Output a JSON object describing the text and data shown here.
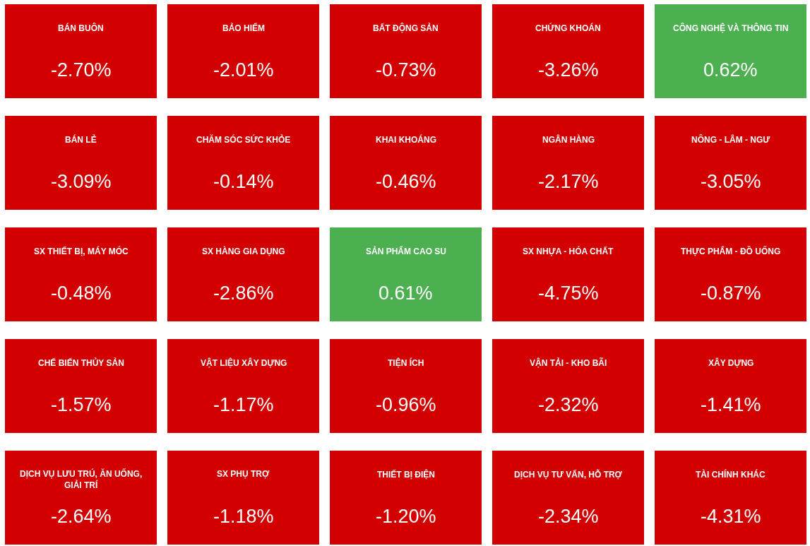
{
  "chart_data": {
    "type": "other",
    "categories": [
      "BÁN BUÔN",
      "BẢO HIỂM",
      "BẤT ĐỘNG SẢN",
      "CHỨNG KHOÁN",
      "CÔNG NGHỆ VÀ THÔNG TIN",
      "BÁN LẺ",
      "CHĂM SÓC SỨC KHỎE",
      "KHAI KHOÁNG",
      "NGÂN HÀNG",
      "NÔNG - LÂM - NGƯ",
      "SX THIẾT BỊ, MÁY MÓC",
      "SX HÀNG GIA DỤNG",
      "SẢN PHẨM CAO SU",
      "SX NHỰA - HÓA CHẤT",
      "THỰC PHẨM - ĐỒ UỐNG",
      "CHẾ BIẾN THỦY SẢN",
      "VẬT LIỆU XÂY DỰNG",
      "TIỆN ÍCH",
      "VẬN TẢI - KHO BÃI",
      "XÂY DỰNG",
      "DỊCH VỤ LƯU TRÚ, ĂN UỐNG, GIẢI TRÍ",
      "SX PHỤ TRỢ",
      "THIẾT BỊ ĐIỆN",
      "DỊCH VỤ TƯ VẤN, HỖ TRỢ",
      "TÀI CHÍNH KHÁC"
    ],
    "values": [
      -2.7,
      -2.01,
      -0.73,
      -3.26,
      0.62,
      -3.09,
      -0.14,
      -0.46,
      -2.17,
      -3.05,
      -0.48,
      -2.86,
      0.61,
      -4.75,
      -0.87,
      -1.57,
      -1.17,
      -0.96,
      -2.32,
      -1.41,
      -2.64,
      -1.18,
      -1.2,
      -2.34,
      -4.31
    ],
    "value_labels": [
      "-2.70%",
      "-2.01%",
      "-0.73%",
      "-3.26%",
      "0.62%",
      "-3.09%",
      "-0.14%",
      "-0.46%",
      "-2.17%",
      "-3.05%",
      "-0.48%",
      "-2.86%",
      "0.61%",
      "-4.75%",
      "-0.87%",
      "-1.57%",
      "-1.17%",
      "-0.96%",
      "-2.32%",
      "-1.41%",
      "-2.64%",
      "-1.18%",
      "-1.20%",
      "-2.34%",
      "-4.31%"
    ],
    "colors": [
      "#d20000",
      "#d20000",
      "#d20000",
      "#d20000",
      "#4caf50",
      "#d20000",
      "#d20000",
      "#d20000",
      "#d20000",
      "#d20000",
      "#d20000",
      "#d20000",
      "#4caf50",
      "#d20000",
      "#d20000",
      "#d20000",
      "#d20000",
      "#d20000",
      "#d20000",
      "#d20000",
      "#d20000",
      "#d20000",
      "#d20000",
      "#d20000",
      "#d20000"
    ]
  }
}
